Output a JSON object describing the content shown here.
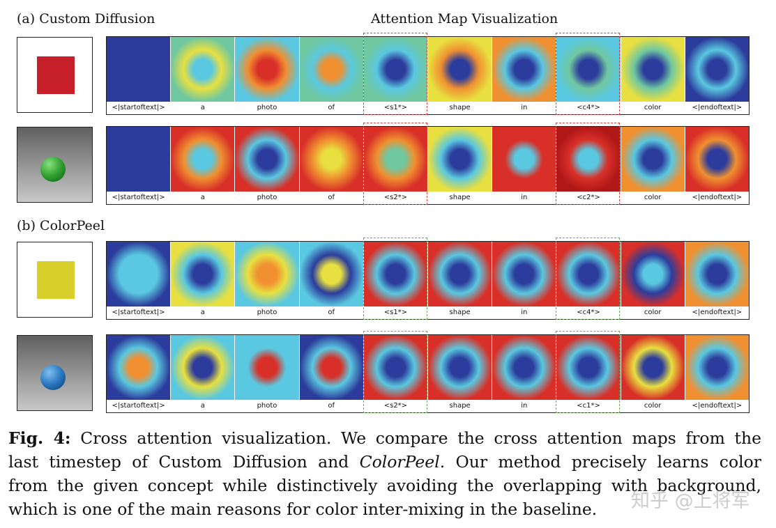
{
  "figure": {
    "title": "Attention Map Visualization",
    "sections": [
      {
        "label": "(a) Custom Diffusion",
        "highlight_color": "#d84040",
        "rows": [
          {
            "thumb": "red-square",
            "tokens": [
              "<|startoftext|>",
              "a",
              "photo",
              "of",
              "<s1*>",
              "shape",
              "in",
              "<c4*>",
              "color",
              "<|endoftext|>"
            ]
          },
          {
            "thumb": "green-sphere",
            "tokens": [
              "<|startoftext|>",
              "a",
              "photo",
              "of",
              "<s2*>",
              "shape",
              "in",
              "<c2*>",
              "color",
              "<|endoftext|>"
            ]
          }
        ]
      },
      {
        "label": "(b) ColorPeel",
        "highlight_color": "#6aaa55",
        "rows": [
          {
            "thumb": "yellow-square",
            "tokens": [
              "<|startoftext|>",
              "a",
              "photo",
              "of",
              "<s1*>",
              "shape",
              "in",
              "<c4*>",
              "color",
              "<|endoftext|>"
            ]
          },
          {
            "thumb": "blue-sphere",
            "tokens": [
              "<|startoftext|>",
              "a",
              "photo",
              "of",
              "<s2*>",
              "shape",
              "in",
              "<c1*>",
              "color",
              "<|endoftext|>"
            ]
          }
        ]
      }
    ],
    "highlighted_columns": [
      4,
      7
    ]
  },
  "caption": {
    "label": "Fig. 4:",
    "lines": [
      " Cross attention visualization. We compare the cross attention maps from the",
      "last timestep of Custom Diffusion and ",
      "from the given concept while distinctively avoiding the overlapping with background,",
      "which is one of the main reasons for color inter-mixing in the baseline."
    ],
    "italic": "ColorPeel",
    "line2_tail": ". Our method precisely learns color"
  },
  "watermark": "知乎 @上将军"
}
